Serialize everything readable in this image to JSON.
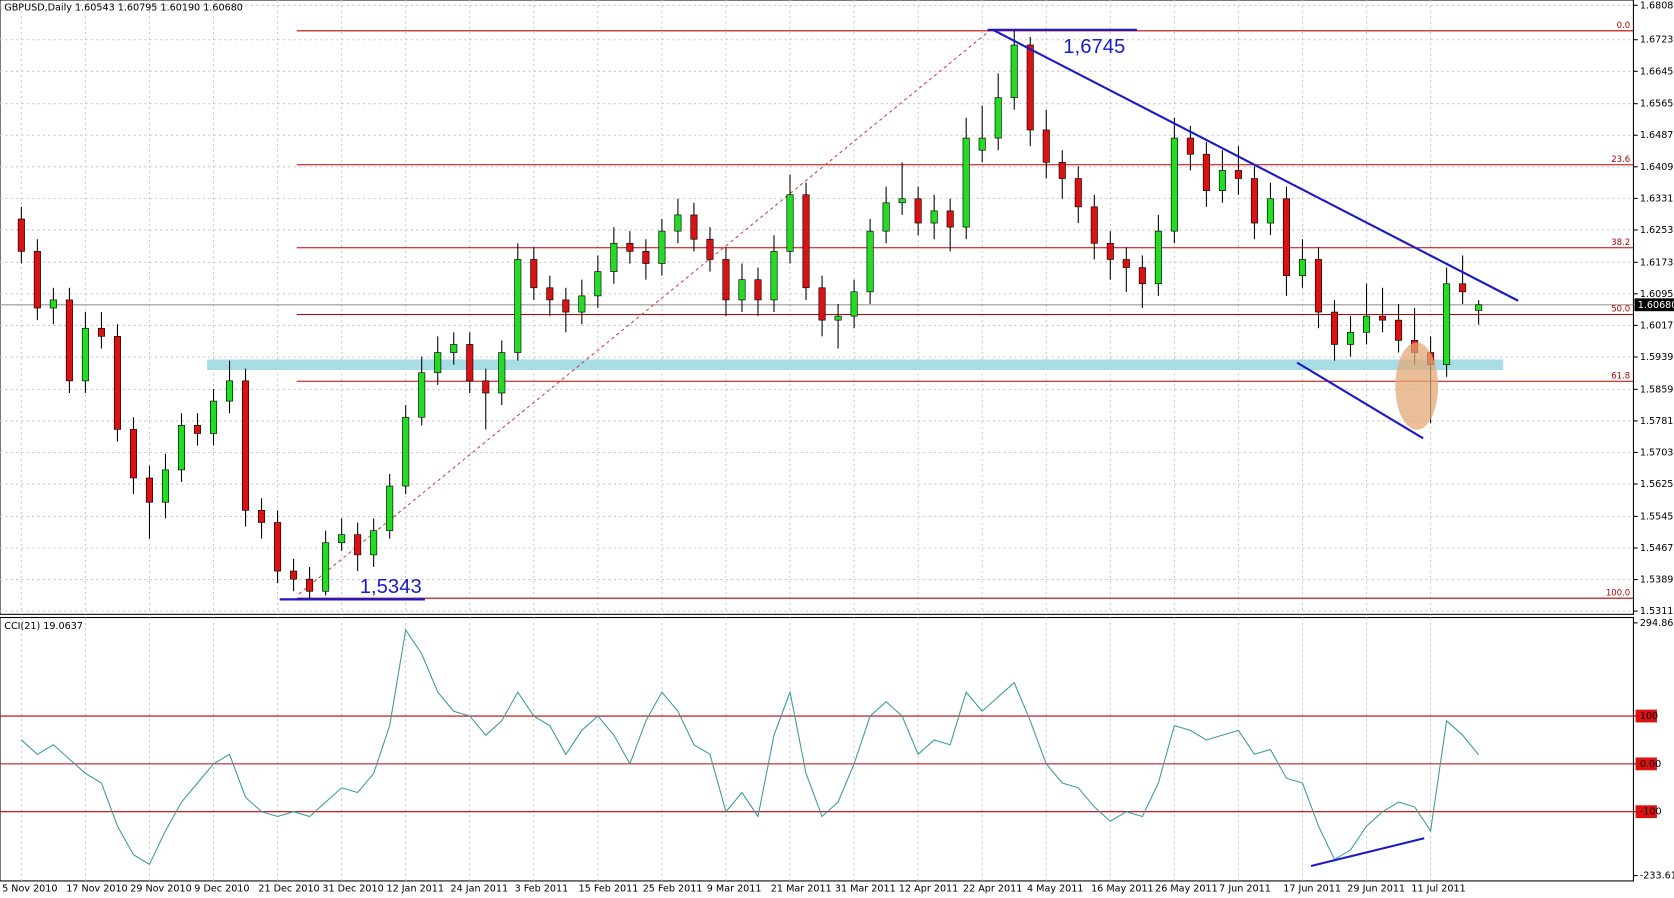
{
  "chart_data": [
    {
      "type": "candlestick",
      "title": "GBPUSD,Daily  1.60543 1.60795 1.60190 1.60680",
      "categories": [
        "5 Nov 2010",
        null,
        null,
        null,
        "17 Nov 2010",
        null,
        null,
        null,
        "29 Nov 2010",
        null,
        null,
        null,
        "9 Dec 2010",
        null,
        null,
        null,
        "21 Dec 2010",
        null,
        null,
        null,
        "31 Dec 2010",
        null,
        null,
        null,
        "12 Jan 2011",
        null,
        null,
        null,
        "24 Jan 2011",
        null,
        null,
        null,
        "3 Feb 2011",
        null,
        null,
        null,
        "15 Feb 2011",
        null,
        null,
        null,
        "25 Feb 2011",
        null,
        null,
        null,
        "9 Mar 2011",
        null,
        null,
        null,
        "21 Mar 2011",
        null,
        null,
        null,
        "31 Mar 2011",
        null,
        null,
        null,
        "12 Apr 2011",
        null,
        null,
        null,
        "22 Apr 2011",
        null,
        null,
        null,
        "4 May 2011",
        null,
        null,
        null,
        "16 May 2011",
        null,
        null,
        null,
        "26 May 2011",
        null,
        null,
        null,
        "7 Jun 2011",
        null,
        null,
        null,
        "17 Jun 2011",
        null,
        null,
        null,
        "29 Jun 2011",
        null,
        null,
        null,
        "11 Jul 2011",
        null,
        null,
        null
      ],
      "ohlc": [
        [
          1.628,
          1.631,
          1.617,
          1.62
        ],
        [
          1.62,
          1.623,
          1.603,
          1.606
        ],
        [
          1.606,
          1.611,
          1.602,
          1.608
        ],
        [
          1.608,
          1.611,
          1.585,
          1.588
        ],
        [
          1.588,
          1.605,
          1.585,
          1.601
        ],
        [
          1.601,
          1.605,
          1.596,
          1.599
        ],
        [
          1.599,
          1.602,
          1.573,
          1.576
        ],
        [
          1.576,
          1.579,
          1.56,
          1.564
        ],
        [
          1.564,
          1.567,
          1.549,
          1.558
        ],
        [
          1.558,
          1.57,
          1.554,
          1.566
        ],
        [
          1.566,
          1.58,
          1.563,
          1.577
        ],
        [
          1.577,
          1.58,
          1.572,
          1.575
        ],
        [
          1.575,
          1.586,
          1.572,
          1.583
        ],
        [
          1.583,
          1.593,
          1.58,
          1.588
        ],
        [
          1.588,
          1.591,
          1.552,
          1.556
        ],
        [
          1.556,
          1.559,
          1.549,
          1.553
        ],
        [
          1.553,
          1.556,
          1.538,
          1.541
        ],
        [
          1.541,
          1.544,
          1.536,
          1.539
        ],
        [
          1.539,
          1.542,
          1.5343,
          1.536
        ],
        [
          1.536,
          1.551,
          1.535,
          1.548
        ],
        [
          1.548,
          1.554,
          1.546,
          1.55
        ],
        [
          1.55,
          1.553,
          1.541,
          1.545
        ],
        [
          1.545,
          1.554,
          1.542,
          1.551
        ],
        [
          1.551,
          1.565,
          1.549,
          1.562
        ],
        [
          1.562,
          1.582,
          1.56,
          1.579
        ],
        [
          1.579,
          1.594,
          1.577,
          1.59
        ],
        [
          1.59,
          1.599,
          1.587,
          1.595
        ],
        [
          1.595,
          1.6,
          1.592,
          1.597
        ],
        [
          1.597,
          1.6,
          1.585,
          1.588
        ],
        [
          1.588,
          1.591,
          1.576,
          1.585
        ],
        [
          1.585,
          1.598,
          1.582,
          1.595
        ],
        [
          1.595,
          1.622,
          1.593,
          1.618
        ],
        [
          1.618,
          1.621,
          1.608,
          1.611
        ],
        [
          1.611,
          1.614,
          1.604,
          1.608
        ],
        [
          1.608,
          1.611,
          1.6,
          1.605
        ],
        [
          1.605,
          1.613,
          1.602,
          1.609
        ],
        [
          1.609,
          1.619,
          1.606,
          1.615
        ],
        [
          1.615,
          1.626,
          1.612,
          1.622
        ],
        [
          1.622,
          1.625,
          1.617,
          1.62
        ],
        [
          1.62,
          1.623,
          1.613,
          1.617
        ],
        [
          1.617,
          1.628,
          1.614,
          1.625
        ],
        [
          1.625,
          1.633,
          1.622,
          1.629
        ],
        [
          1.629,
          1.632,
          1.62,
          1.623
        ],
        [
          1.623,
          1.626,
          1.615,
          1.618
        ],
        [
          1.618,
          1.621,
          1.604,
          1.608
        ],
        [
          1.608,
          1.617,
          1.605,
          1.613
        ],
        [
          1.613,
          1.616,
          1.604,
          1.608
        ],
        [
          1.608,
          1.624,
          1.605,
          1.62
        ],
        [
          1.62,
          1.639,
          1.617,
          1.634
        ],
        [
          1.634,
          1.637,
          1.608,
          1.611
        ],
        [
          1.611,
          1.614,
          1.599,
          1.603
        ],
        [
          1.603,
          1.607,
          1.596,
          1.604
        ],
        [
          1.604,
          1.613,
          1.601,
          1.61
        ],
        [
          1.61,
          1.628,
          1.607,
          1.625
        ],
        [
          1.625,
          1.636,
          1.622,
          1.632
        ],
        [
          1.632,
          1.642,
          1.629,
          1.633
        ],
        [
          1.633,
          1.636,
          1.624,
          1.627
        ],
        [
          1.627,
          1.634,
          1.623,
          1.63
        ],
        [
          1.63,
          1.633,
          1.62,
          1.626
        ],
        [
          1.626,
          1.653,
          1.623,
          1.648
        ],
        [
          1.645,
          1.656,
          1.642,
          1.648
        ],
        [
          1.648,
          1.664,
          1.645,
          1.658
        ],
        [
          1.658,
          1.6745,
          1.655,
          1.671
        ],
        [
          1.671,
          1.673,
          1.646,
          1.65
        ],
        [
          1.65,
          1.655,
          1.638,
          1.642
        ],
        [
          1.642,
          1.645,
          1.633,
          1.638
        ],
        [
          1.638,
          1.641,
          1.627,
          1.631
        ],
        [
          1.631,
          1.634,
          1.618,
          1.622
        ],
        [
          1.622,
          1.625,
          1.613,
          1.618
        ],
        [
          1.618,
          1.621,
          1.61,
          1.616
        ],
        [
          1.616,
          1.619,
          1.606,
          1.612
        ],
        [
          1.612,
          1.629,
          1.609,
          1.625
        ],
        [
          1.625,
          1.653,
          1.622,
          1.648
        ],
        [
          1.648,
          1.651,
          1.64,
          1.644
        ],
        [
          1.644,
          1.647,
          1.631,
          1.635
        ],
        [
          1.635,
          1.645,
          1.632,
          1.64
        ],
        [
          1.64,
          1.646,
          1.634,
          1.638
        ],
        [
          1.638,
          1.641,
          1.623,
          1.627
        ],
        [
          1.627,
          1.637,
          1.624,
          1.633
        ],
        [
          1.633,
          1.636,
          1.609,
          1.614
        ],
        [
          1.614,
          1.623,
          1.611,
          1.618
        ],
        [
          1.618,
          1.621,
          1.601,
          1.605
        ],
        [
          1.605,
          1.608,
          1.593,
          1.597
        ],
        [
          1.597,
          1.604,
          1.594,
          1.6
        ],
        [
          1.6,
          1.612,
          1.597,
          1.604
        ],
        [
          1.604,
          1.611,
          1.6,
          1.603
        ],
        [
          1.603,
          1.607,
          1.595,
          1.598
        ],
        [
          1.598,
          1.606,
          1.592,
          1.595
        ],
        [
          1.595,
          1.599,
          1.5775,
          1.592
        ],
        [
          1.592,
          1.616,
          1.589,
          1.612
        ],
        [
          1.612,
          1.619,
          1.607,
          1.61
        ],
        [
          1.60543,
          1.60795,
          1.6019,
          1.6068
        ]
      ],
      "ylim": [
        1.5311,
        1.6808
      ],
      "yticks": [
        {
          "value": 1.6808,
          "label": "1.68080"
        },
        {
          "value": 1.6723,
          "label": "1.67230"
        },
        {
          "value": 1.6645,
          "label": "1.66450"
        },
        {
          "value": 1.6565,
          "label": "1.65650"
        },
        {
          "value": 1.6487,
          "label": "1.64870"
        },
        {
          "value": 1.6409,
          "label": "1.64090"
        },
        {
          "value": 1.6331,
          "label": "1.63310"
        },
        {
          "value": 1.6253,
          "label": "1.62530"
        },
        {
          "value": 1.6173,
          "label": "1.61730"
        },
        {
          "value": 1.6095,
          "label": "1.60950"
        },
        {
          "value": 1.6017,
          "label": "1.60170"
        },
        {
          "value": 1.5939,
          "label": "1.59390"
        },
        {
          "value": 1.5859,
          "label": "1.58590"
        },
        {
          "value": 1.5781,
          "label": "1.57810"
        },
        {
          "value": 1.5703,
          "label": "1.57030"
        },
        {
          "value": 1.5625,
          "label": "1.56250"
        },
        {
          "value": 1.5545,
          "label": "1.55450"
        },
        {
          "value": 1.5467,
          "label": "1.54670"
        },
        {
          "value": 1.5389,
          "label": "1.53890"
        },
        {
          "value": 1.5311,
          "label": "1.53110"
        }
      ],
      "grid": true,
      "last_price": {
        "value": 1.6068,
        "label": "1.60680"
      },
      "fib_levels": [
        {
          "level": "0.0",
          "price": 1.6745
        },
        {
          "level": "23.6",
          "price": 1.6414
        },
        {
          "level": "38.2",
          "price": 1.6209
        },
        {
          "level": "50.0",
          "price": 1.6044
        },
        {
          "level": "61.8",
          "price": 1.5879
        },
        {
          "level": "100.0",
          "price": 1.5343
        }
      ],
      "annotations": [
        {
          "text": "1,6745",
          "price": 1.6745
        },
        {
          "text": "1,5343",
          "price": 1.5343
        }
      ]
    },
    {
      "type": "line",
      "title": "CCI(21) 19.0637",
      "color": "#3a9aa0",
      "values": [
        50,
        20,
        40,
        10,
        -20,
        -40,
        -130,
        -190,
        -210,
        -140,
        -80,
        -40,
        0,
        20,
        -70,
        -100,
        -110,
        -100,
        -110,
        -80,
        -50,
        -60,
        -20,
        80,
        280,
        230,
        150,
        110,
        100,
        60,
        90,
        150,
        100,
        80,
        20,
        70,
        100,
        60,
        0,
        90,
        150,
        110,
        40,
        20,
        -100,
        -60,
        -110,
        60,
        150,
        -20,
        -110,
        -80,
        0,
        100,
        130,
        100,
        20,
        50,
        40,
        150,
        110,
        140,
        170,
        90,
        0,
        -40,
        -50,
        -90,
        -120,
        -100,
        -110,
        -40,
        80,
        70,
        50,
        60,
        70,
        20,
        30,
        -30,
        -40,
        -130,
        -200,
        -180,
        -130,
        -100,
        -80,
        -90,
        -140,
        90,
        60,
        19.0637
      ],
      "ylim": [
        -233.611,
        294.8682
      ],
      "yticks": [
        294.8682,
        100,
        {
          "value": 0,
          "label": "0.00"
        },
        -100,
        -233.611
      ],
      "levels": [
        100,
        0,
        -100
      ]
    }
  ]
}
